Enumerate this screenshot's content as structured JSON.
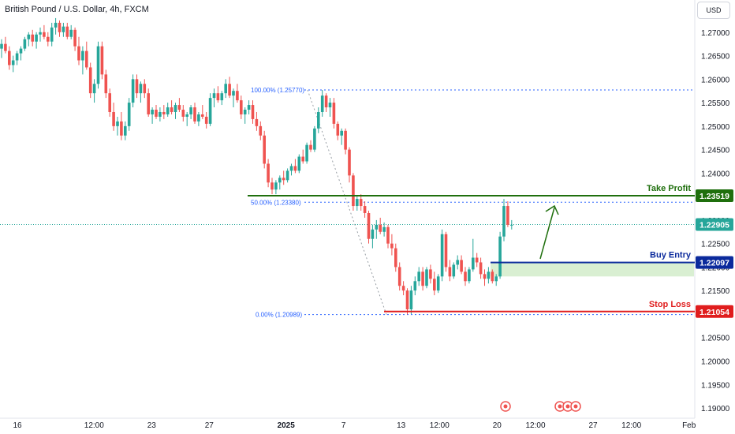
{
  "header": {
    "symbol": "British Pound / U.S. Dollar, 4h, FXCM",
    "currency": "USD"
  },
  "colors": {
    "up": "#26a69a",
    "down": "#ef5350",
    "take_profit": "#1f6f0d",
    "buy_entry": "#0b2a9c",
    "stop_loss": "#e01d1d",
    "current_price": "#26a69a",
    "fib": "#2962ff",
    "buy_zone": "#d9efd2"
  },
  "chart_data": {
    "type": "candlestick",
    "ylim": [
      1.1895,
      1.2745
    ],
    "y_ticks": [
      "1.27000",
      "1.26500",
      "1.26000",
      "1.25500",
      "1.25000",
      "1.24500",
      "1.24000",
      "1.23500",
      "1.23000",
      "1.22500",
      "1.22000",
      "1.21500",
      "1.21000",
      "1.20500",
      "1.20000",
      "1.19500",
      "1.19000"
    ],
    "x_ticks": [
      {
        "label": "16",
        "pos": 0.0,
        "bold": false
      },
      {
        "label": "12:00",
        "pos": 0.1333,
        "bold": false
      },
      {
        "label": "23",
        "pos": 0.2333,
        "bold": false
      },
      {
        "label": "27",
        "pos": 0.3333,
        "bold": false
      },
      {
        "label": "2025",
        "pos": 0.4667,
        "bold": true
      },
      {
        "label": "7",
        "pos": 0.5667,
        "bold": false
      },
      {
        "label": "13",
        "pos": 0.6667,
        "bold": false
      },
      {
        "label": "12:00",
        "pos": 0.7333,
        "bold": false
      },
      {
        "label": "20",
        "pos": 0.8333,
        "bold": false
      },
      {
        "label": "12:00",
        "pos": 0.9,
        "bold": false
      },
      {
        "label": "27",
        "pos": 1.0,
        "bold": false
      },
      {
        "label": "12:00",
        "pos": 1.0667,
        "bold": false
      },
      {
        "label": "Feb",
        "pos": 1.1667,
        "bold": false
      }
    ],
    "candles": [
      [
        1.2665,
        1.2685,
        1.2645,
        1.2675
      ],
      [
        1.2675,
        1.269,
        1.2655,
        1.266
      ],
      [
        1.266,
        1.267,
        1.262,
        1.263
      ],
      [
        1.263,
        1.265,
        1.2615,
        1.264
      ],
      [
        1.264,
        1.266,
        1.263,
        1.2655
      ],
      [
        1.2655,
        1.267,
        1.264,
        1.2665
      ],
      [
        1.2665,
        1.269,
        1.266,
        1.2685
      ],
      [
        1.2685,
        1.27,
        1.267,
        1.2695
      ],
      [
        1.2695,
        1.2705,
        1.267,
        1.268
      ],
      [
        1.268,
        1.27,
        1.2665,
        1.2695
      ],
      [
        1.2695,
        1.271,
        1.268,
        1.27
      ],
      [
        1.27,
        1.2715,
        1.2685,
        1.269
      ],
      [
        1.269,
        1.27,
        1.267,
        1.268
      ],
      [
        1.268,
        1.272,
        1.267,
        1.271
      ],
      [
        1.271,
        1.273,
        1.2695,
        1.272
      ],
      [
        1.272,
        1.2725,
        1.269,
        1.27
      ],
      [
        1.27,
        1.272,
        1.269,
        1.2712
      ],
      [
        1.2712,
        1.272,
        1.2685,
        1.269
      ],
      [
        1.269,
        1.2715,
        1.2685,
        1.2705
      ],
      [
        1.2705,
        1.271,
        1.266,
        1.267
      ],
      [
        1.267,
        1.269,
        1.263,
        1.264
      ],
      [
        1.264,
        1.267,
        1.261,
        1.266
      ],
      [
        1.266,
        1.268,
        1.262,
        1.2625
      ],
      [
        1.2625,
        1.2635,
        1.256,
        1.257
      ],
      [
        1.257,
        1.26,
        1.255,
        1.259
      ],
      [
        1.259,
        1.268,
        1.258,
        1.267
      ],
      [
        1.267,
        1.268,
        1.26,
        1.261
      ],
      [
        1.261,
        1.262,
        1.256,
        1.257
      ],
      [
        1.257,
        1.258,
        1.252,
        1.253
      ],
      [
        1.253,
        1.255,
        1.249,
        1.25
      ],
      [
        1.25,
        1.252,
        1.248,
        1.251
      ],
      [
        1.251,
        1.253,
        1.247,
        1.248
      ],
      [
        1.248,
        1.251,
        1.247,
        1.25
      ],
      [
        1.25,
        1.256,
        1.249,
        1.255
      ],
      [
        1.255,
        1.261,
        1.254,
        1.26
      ],
      [
        1.26,
        1.261,
        1.256,
        1.257
      ],
      [
        1.257,
        1.2595,
        1.255,
        1.259
      ],
      [
        1.259,
        1.26,
        1.256,
        1.257
      ],
      [
        1.257,
        1.258,
        1.252,
        1.2525
      ],
      [
        1.2525,
        1.254,
        1.2505,
        1.2535
      ],
      [
        1.2535,
        1.2545,
        1.2515,
        1.252
      ],
      [
        1.252,
        1.254,
        1.251,
        1.253
      ],
      [
        1.253,
        1.2545,
        1.2515,
        1.2525
      ],
      [
        1.2525,
        1.255,
        1.252,
        1.254
      ],
      [
        1.254,
        1.2555,
        1.2525,
        1.253
      ],
      [
        1.253,
        1.255,
        1.2515,
        1.2545
      ],
      [
        1.2545,
        1.256,
        1.253,
        1.2535
      ],
      [
        1.2535,
        1.2545,
        1.251,
        1.252
      ],
      [
        1.252,
        1.253,
        1.25,
        1.2525
      ],
      [
        1.2525,
        1.2545,
        1.2515,
        1.254
      ],
      [
        1.254,
        1.255,
        1.2505,
        1.251
      ],
      [
        1.251,
        1.253,
        1.25,
        1.2525
      ],
      [
        1.2525,
        1.2545,
        1.2515,
        1.252
      ],
      [
        1.252,
        1.253,
        1.2495,
        1.2505
      ],
      [
        1.2505,
        1.257,
        1.25,
        1.256
      ],
      [
        1.256,
        1.258,
        1.254,
        1.257
      ],
      [
        1.257,
        1.2585,
        1.255,
        1.2555
      ],
      [
        1.2555,
        1.2575,
        1.2545,
        1.257
      ],
      [
        1.257,
        1.26,
        1.256,
        1.259
      ],
      [
        1.259,
        1.2605,
        1.256,
        1.2565
      ],
      [
        1.2565,
        1.258,
        1.254,
        1.2575
      ],
      [
        1.2575,
        1.259,
        1.255,
        1.2555
      ],
      [
        1.2555,
        1.2565,
        1.2515,
        1.2525
      ],
      [
        1.2525,
        1.254,
        1.2505,
        1.2535
      ],
      [
        1.2535,
        1.2555,
        1.2525,
        1.2545
      ],
      [
        1.2545,
        1.2555,
        1.2505,
        1.2515
      ],
      [
        1.2515,
        1.253,
        1.249,
        1.25
      ],
      [
        1.25,
        1.251,
        1.247,
        1.248
      ],
      [
        1.248,
        1.249,
        1.241,
        1.242
      ],
      [
        1.242,
        1.243,
        1.237,
        1.238
      ],
      [
        1.238,
        1.239,
        1.2355,
        1.2365
      ],
      [
        1.2365,
        1.2385,
        1.2355,
        1.238
      ],
      [
        1.238,
        1.2395,
        1.2365,
        1.239
      ],
      [
        1.239,
        1.2405,
        1.2375,
        1.2385
      ],
      [
        1.2385,
        1.241,
        1.238,
        1.2405
      ],
      [
        1.2405,
        1.242,
        1.2395,
        1.2415
      ],
      [
        1.2415,
        1.243,
        1.24,
        1.2405
      ],
      [
        1.2405,
        1.244,
        1.24,
        1.2435
      ],
      [
        1.2435,
        1.245,
        1.242,
        1.2425
      ],
      [
        1.2425,
        1.2465,
        1.242,
        1.246
      ],
      [
        1.246,
        1.247,
        1.2445,
        1.245
      ],
      [
        1.245,
        1.25,
        1.2445,
        1.2495
      ],
      [
        1.2495,
        1.254,
        1.2485,
        1.253
      ],
      [
        1.253,
        1.2577,
        1.252,
        1.2565
      ],
      [
        1.2565,
        1.257,
        1.253,
        1.254
      ],
      [
        1.254,
        1.256,
        1.252,
        1.255
      ],
      [
        1.255,
        1.256,
        1.2495,
        1.2505
      ],
      [
        1.2505,
        1.251,
        1.247,
        1.248
      ],
      [
        1.248,
        1.2495,
        1.246,
        1.249
      ],
      [
        1.249,
        1.2495,
        1.244,
        1.245
      ],
      [
        1.245,
        1.2455,
        1.238,
        1.2395
      ],
      [
        1.2395,
        1.24,
        1.232,
        1.233
      ],
      [
        1.233,
        1.235,
        1.232,
        1.2345
      ],
      [
        1.2345,
        1.2355,
        1.232,
        1.233
      ],
      [
        1.233,
        1.234,
        1.2305,
        1.2315
      ],
      [
        1.2315,
        1.232,
        1.225,
        1.226
      ],
      [
        1.226,
        1.229,
        1.224,
        1.228
      ],
      [
        1.228,
        1.23,
        1.226,
        1.229
      ],
      [
        1.229,
        1.2305,
        1.227,
        1.2275
      ],
      [
        1.2275,
        1.2295,
        1.2265,
        1.2285
      ],
      [
        1.2285,
        1.229,
        1.224,
        1.225
      ],
      [
        1.225,
        1.227,
        1.2225,
        1.224
      ],
      [
        1.224,
        1.225,
        1.219,
        1.22
      ],
      [
        1.22,
        1.221,
        1.215,
        1.216
      ],
      [
        1.216,
        1.217,
        1.214,
        1.215
      ],
      [
        1.215,
        1.2155,
        1.2099,
        1.211
      ],
      [
        1.211,
        1.216,
        1.21,
        1.215
      ],
      [
        1.215,
        1.218,
        1.214,
        1.217
      ],
      [
        1.217,
        1.22,
        1.216,
        1.219
      ],
      [
        1.219,
        1.22,
        1.215,
        1.216
      ],
      [
        1.216,
        1.22,
        1.2155,
        1.2195
      ],
      [
        1.2195,
        1.2205,
        1.2165,
        1.2175
      ],
      [
        1.2175,
        1.219,
        1.214,
        1.215
      ],
      [
        1.215,
        1.2185,
        1.2145,
        1.218
      ],
      [
        1.218,
        1.228,
        1.217,
        1.227
      ],
      [
        1.227,
        1.2275,
        1.219,
        1.22
      ],
      [
        1.22,
        1.2215,
        1.217,
        1.218
      ],
      [
        1.218,
        1.221,
        1.2175,
        1.2205
      ],
      [
        1.2205,
        1.2225,
        1.2195,
        1.2215
      ],
      [
        1.2215,
        1.2225,
        1.2185,
        1.219
      ],
      [
        1.219,
        1.22,
        1.216,
        1.217
      ],
      [
        1.217,
        1.22,
        1.2165,
        1.2195
      ],
      [
        1.2195,
        1.226,
        1.219,
        1.222
      ],
      [
        1.222,
        1.223,
        1.22,
        1.221
      ],
      [
        1.221,
        1.222,
        1.2175,
        1.2185
      ],
      [
        1.2185,
        1.2195,
        1.216,
        1.2175
      ],
      [
        1.2175,
        1.22,
        1.2165,
        1.219
      ],
      [
        1.219,
        1.2195,
        1.2165,
        1.217
      ],
      [
        1.217,
        1.2185,
        1.216,
        1.218
      ],
      [
        1.218,
        1.2275,
        1.2175,
        1.2265
      ],
      [
        1.2265,
        1.2345,
        1.2255,
        1.233
      ],
      [
        1.233,
        1.234,
        1.2285,
        1.229
      ],
      [
        1.229,
        1.23,
        1.228,
        1.229
      ]
    ],
    "price_lines": {
      "take_profit": {
        "label": "Take Profit",
        "value": "1.23519",
        "price": 1.23519
      },
      "current": {
        "value": "1.22905",
        "price": 1.22905
      },
      "buy_entry": {
        "label": "Buy Entry",
        "value": "1.22097",
        "price": 1.22097
      },
      "stop_loss": {
        "label": "Stop Loss",
        "value": "1.21054",
        "price": 1.21054
      }
    },
    "fib_levels": [
      {
        "label": "100.00% (1.25770)",
        "price": 1.2577
      },
      {
        "label": "50.00% (1.23380)",
        "price": 1.2338
      },
      {
        "label": "0.00% (1.20989)",
        "price": 1.20989
      }
    ],
    "buy_zone": {
      "top": 1.22097,
      "bottom": 1.218
    }
  }
}
